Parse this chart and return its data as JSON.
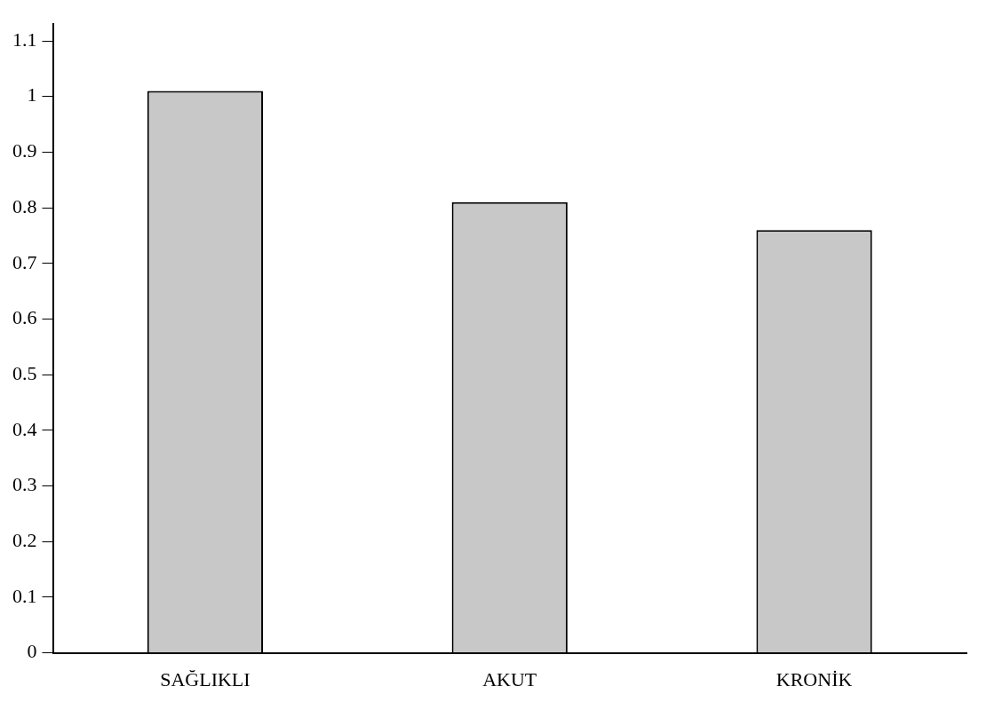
{
  "chart_data": {
    "type": "bar",
    "categories": [
      "SAĞLIKLI",
      "AKUT",
      "KRONİK"
    ],
    "values": [
      1.01,
      0.81,
      0.76
    ],
    "color": "#c8c8c8",
    "ylim": [
      0,
      1.13
    ],
    "yticks": [
      0,
      0.1,
      0.2,
      0.3,
      0.4,
      0.5,
      0.6,
      0.7,
      0.8,
      0.9,
      1,
      1.1
    ],
    "grid": false,
    "legend": false
  }
}
